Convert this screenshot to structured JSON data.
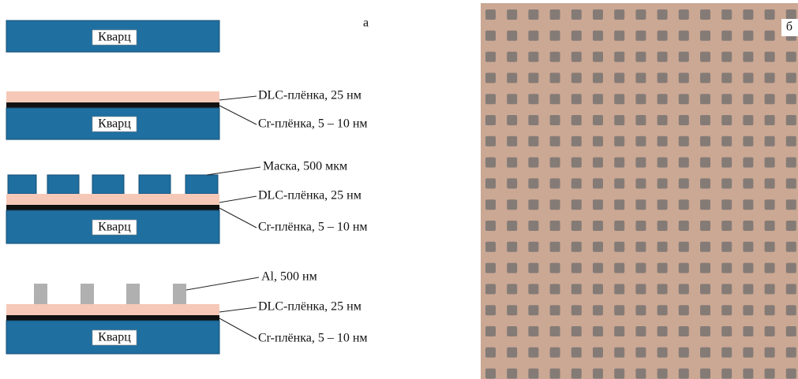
{
  "panel_a": {
    "letter": "а",
    "stages": [
      {
        "substrate": "Кварц"
      },
      {
        "substrate": "Кварц",
        "labels": [
          "DLC-плёнка, 25 нм",
          "Cr-плёнка, 5 – 10 нм"
        ]
      },
      {
        "substrate": "Кварц",
        "labels": [
          "Маска, 500 мкм",
          "DLC-плёнка, 25 нм",
          "Cr-плёнка, 5 – 10 нм"
        ]
      },
      {
        "substrate": "Кварц",
        "labels": [
          "Al, 500 нм",
          "DLC-плёнка, 25 нм",
          "Cr-плёнка, 5 – 10 нм"
        ]
      }
    ]
  },
  "panel_b": {
    "letter": "б"
  }
}
